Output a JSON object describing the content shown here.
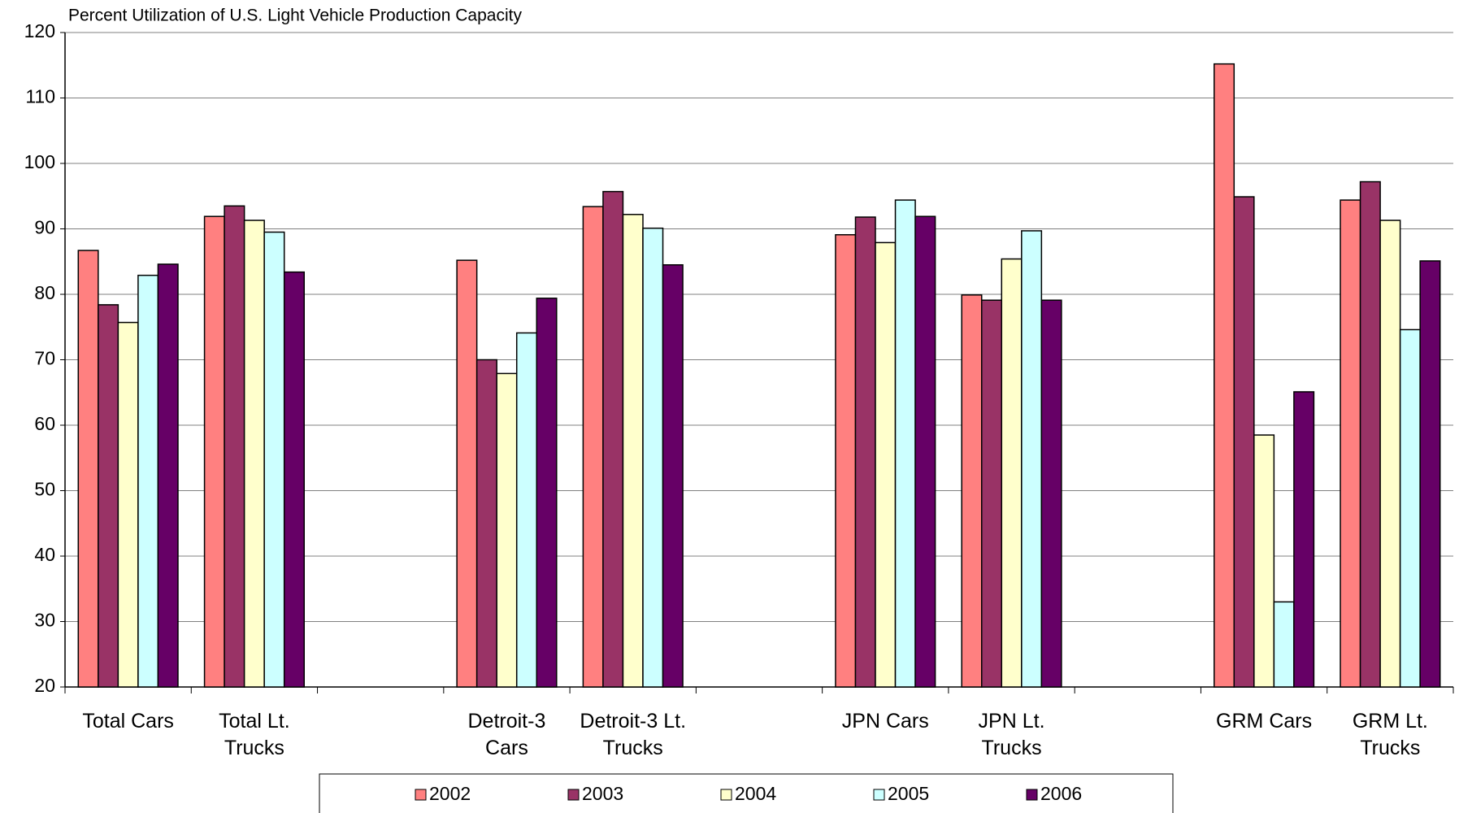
{
  "chart_data": {
    "type": "bar",
    "title": "Percent Utilization of U.S. Light Vehicle Production Capacity",
    "categories": [
      "Total Cars",
      "Total Lt. Trucks",
      null,
      "Detroit-3 Cars",
      "Detroit-3 Lt. Trucks",
      null,
      "JPN Cars",
      "JPN Lt. Trucks",
      null,
      "GRM Cars",
      "GRM Lt. Trucks"
    ],
    "series": [
      {
        "name": "2002",
        "color": "#ff8080",
        "values": [
          86.7,
          91.9,
          null,
          85.2,
          93.4,
          null,
          89.1,
          79.9,
          null,
          115.2,
          94.4
        ]
      },
      {
        "name": "2003",
        "color": "#993366",
        "values": [
          78.4,
          93.5,
          null,
          70.0,
          95.7,
          null,
          91.8,
          79.1,
          null,
          94.9,
          97.2
        ]
      },
      {
        "name": "2004",
        "color": "#ffffcc",
        "values": [
          75.7,
          91.3,
          null,
          67.9,
          92.2,
          null,
          87.9,
          85.4,
          null,
          58.5,
          91.3
        ]
      },
      {
        "name": "2005",
        "color": "#ccffff",
        "values": [
          82.9,
          89.5,
          null,
          74.1,
          90.1,
          null,
          94.4,
          89.7,
          null,
          33.0,
          74.6
        ]
      },
      {
        "name": "2006",
        "color": "#660066",
        "values": [
          84.6,
          83.4,
          null,
          79.4,
          84.5,
          null,
          91.9,
          79.1,
          null,
          65.1,
          85.1
        ]
      }
    ],
    "ylim": [
      20,
      120
    ],
    "yticks": [
      20,
      30,
      40,
      50,
      60,
      70,
      80,
      90,
      100,
      110,
      120
    ],
    "grid": true,
    "legend": "bottom"
  }
}
